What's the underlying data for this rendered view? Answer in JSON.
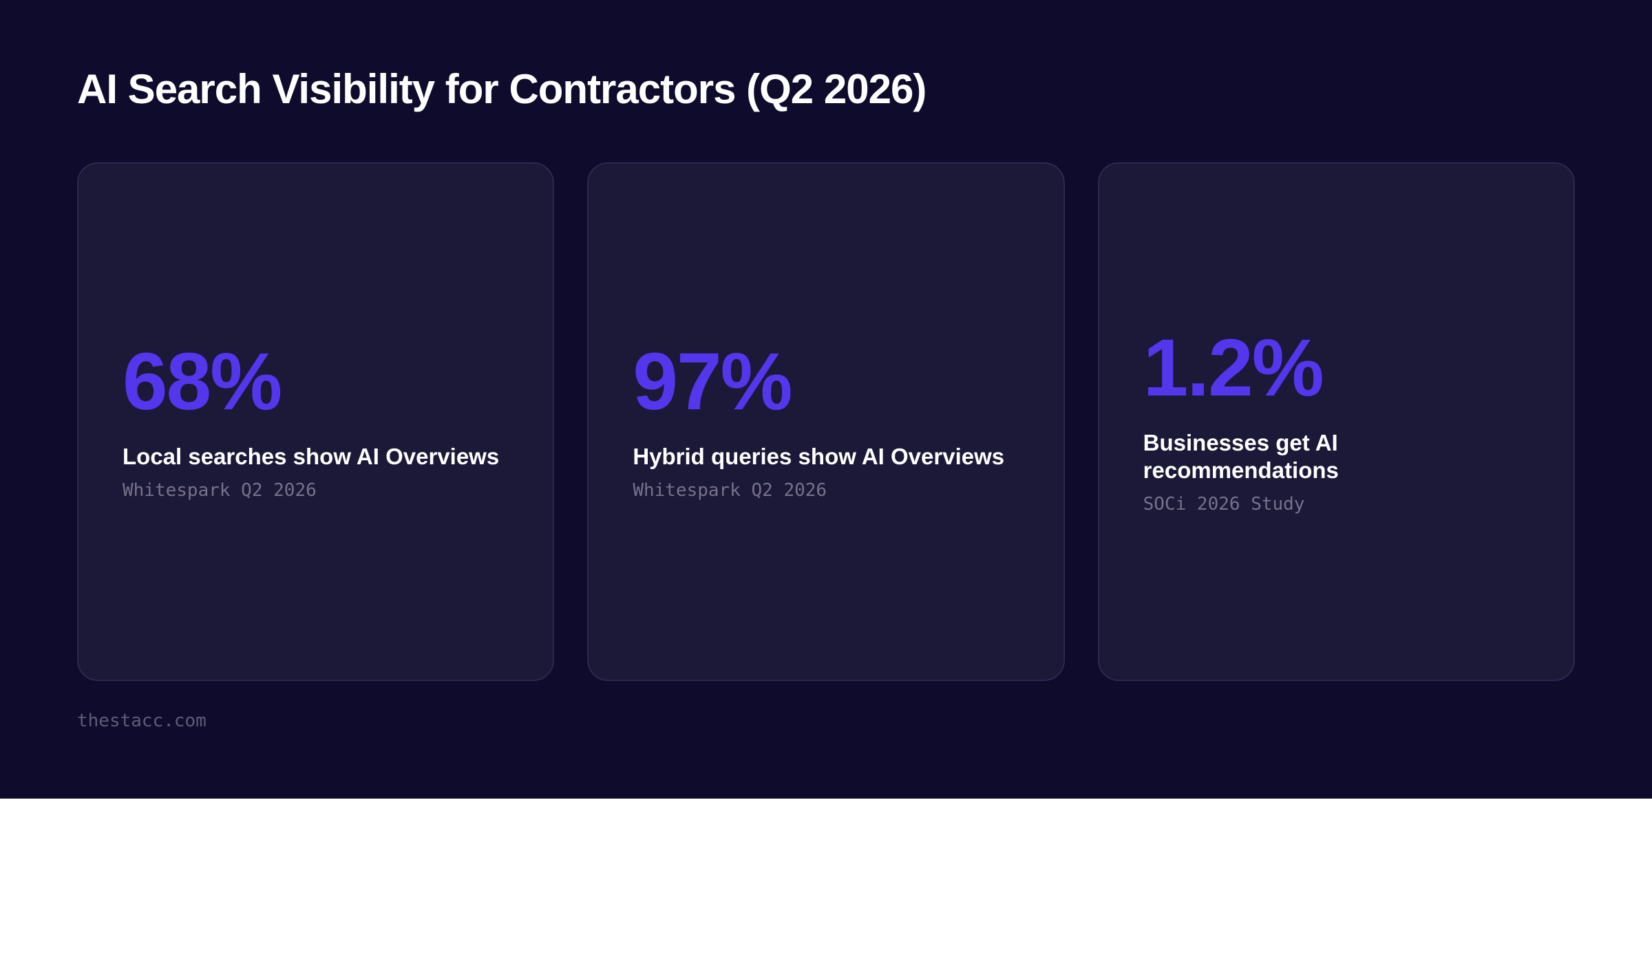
{
  "title": "AI Search Visibility for Contractors (Q2 2026)",
  "cards": [
    {
      "value": "68%",
      "label": "Local searches show AI Overviews",
      "source": "Whitespark Q2 2026"
    },
    {
      "value": "97%",
      "label": "Hybrid queries show AI Overviews",
      "source": "Whitespark Q2 2026"
    },
    {
      "value": "1.2%",
      "label": "Businesses get AI recommendations",
      "source": "SOCi 2026 Study"
    }
  ],
  "footer": "thestacc.com",
  "colors": {
    "background": "#0f0b2c",
    "card": "#1c1838",
    "accent": "#5436ec",
    "text": "#ffffff",
    "muted": "#76728c"
  }
}
